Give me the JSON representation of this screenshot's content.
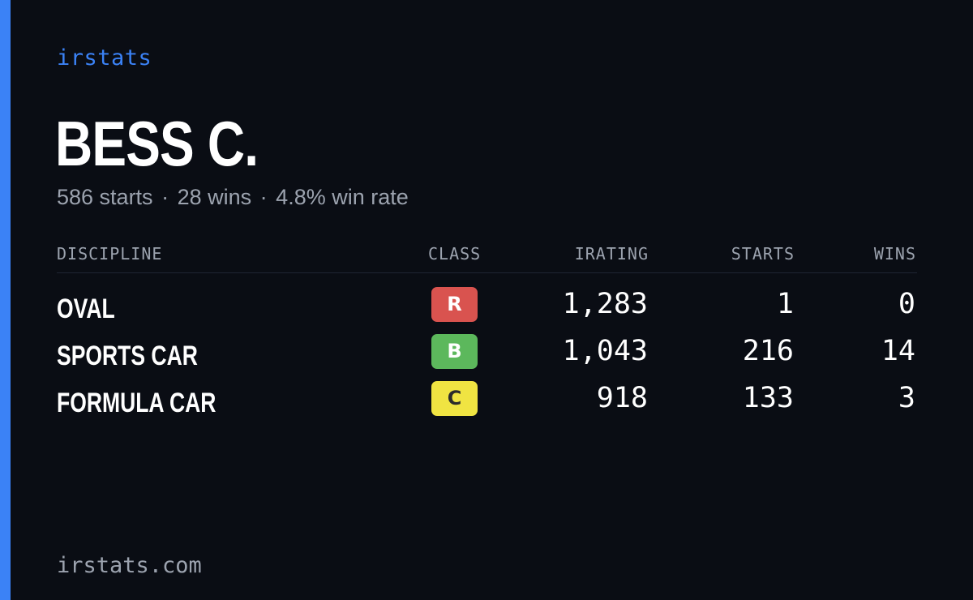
{
  "brand": "irstats",
  "player": {
    "name": "BESS C.",
    "starts": "586 starts",
    "wins": "28 wins",
    "win_rate": "4.8% win rate",
    "separator": "·"
  },
  "table": {
    "headers": {
      "discipline": "DISCIPLINE",
      "class": "CLASS",
      "irating": "IRATING",
      "starts": "STARTS",
      "wins": "WINS"
    },
    "rows": [
      {
        "discipline": "OVAL",
        "class": "R",
        "class_color": "#d9534f",
        "class_text_color": "#ffffff",
        "irating": "1,283",
        "starts": "1",
        "wins": "0"
      },
      {
        "discipline": "SPORTS CAR",
        "class": "B",
        "class_color": "#5cb85c",
        "class_text_color": "#ffffff",
        "irating": "1,043",
        "starts": "216",
        "wins": "14"
      },
      {
        "discipline": "FORMULA CAR",
        "class": "C",
        "class_color": "#f0e442",
        "class_text_color": "#2b2b2b",
        "irating": "918",
        "starts": "133",
        "wins": "3"
      }
    ]
  },
  "footer": "irstats.com",
  "colors": {
    "accent": "#3b82f6",
    "background": "#0a0d14",
    "muted": "#9ca3af"
  }
}
